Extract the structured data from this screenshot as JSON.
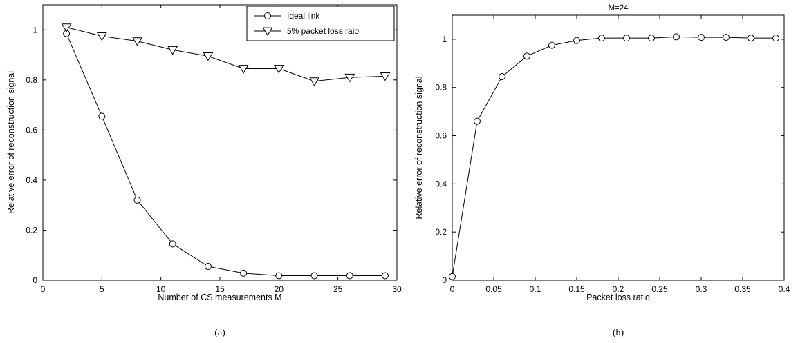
{
  "chart_data": [
    {
      "type": "line",
      "caption": "(a)",
      "title": "",
      "xlabel": "Number of CS measurements M",
      "ylabel": "Relative error of reconstruction signal",
      "xlim": [
        0,
        30
      ],
      "ylim": [
        0,
        1.1
      ],
      "xticks": [
        0,
        5,
        10,
        15,
        20,
        25,
        30
      ],
      "yticks": [
        0,
        0.2,
        0.4,
        0.6,
        0.8,
        1
      ],
      "xtick_labels": [
        "0",
        "5",
        "10",
        "15",
        "20",
        "25",
        "30"
      ],
      "ytick_labels": [
        "0",
        "0.2",
        "0.4",
        "0.6",
        "0.8",
        "1"
      ],
      "grid": false,
      "legend_position": "top-right",
      "series": [
        {
          "name": "Ideal link",
          "marker": "circle",
          "x": [
            2,
            5,
            8,
            11,
            14,
            17,
            20,
            23,
            26,
            29
          ],
          "y": [
            0.985,
            0.655,
            0.32,
            0.145,
            0.055,
            0.028,
            0.018,
            0.018,
            0.018,
            0.018
          ]
        },
        {
          "name": "5% packet loss raio",
          "marker": "triangle-down",
          "x": [
            2,
            5,
            8,
            11,
            14,
            17,
            20,
            23,
            26,
            29
          ],
          "y": [
            1.01,
            0.975,
            0.955,
            0.92,
            0.895,
            0.845,
            0.845,
            0.795,
            0.81,
            0.815
          ]
        }
      ]
    },
    {
      "type": "line",
      "caption": "(b)",
      "title": "M=24",
      "xlabel": "Packet loss ratio",
      "ylabel": "Relative error of reconstruction signal",
      "xlim": [
        0,
        0.4
      ],
      "ylim": [
        0,
        1.1
      ],
      "xticks": [
        0,
        0.05,
        0.1,
        0.15,
        0.2,
        0.25,
        0.3,
        0.35,
        0.4
      ],
      "yticks": [
        0,
        0.2,
        0.4,
        0.6,
        0.8,
        1
      ],
      "xtick_labels": [
        "0",
        "0.05",
        "0.1",
        "0.15",
        "0.2",
        "0.25",
        "0.3",
        "0.35",
        "0.4"
      ],
      "ytick_labels": [
        "0",
        "0.2",
        "0.4",
        "0.6",
        "0.8",
        "1"
      ],
      "grid": false,
      "series": [
        {
          "marker": "circle",
          "x": [
            0,
            0.03,
            0.06,
            0.09,
            0.12,
            0.15,
            0.18,
            0.21,
            0.24,
            0.27,
            0.3,
            0.33,
            0.36,
            0.39
          ],
          "y": [
            0.015,
            0.66,
            0.845,
            0.93,
            0.975,
            0.995,
            1.005,
            1.005,
            1.005,
            1.01,
            1.008,
            1.008,
            1.005,
            1.005
          ]
        }
      ]
    }
  ]
}
